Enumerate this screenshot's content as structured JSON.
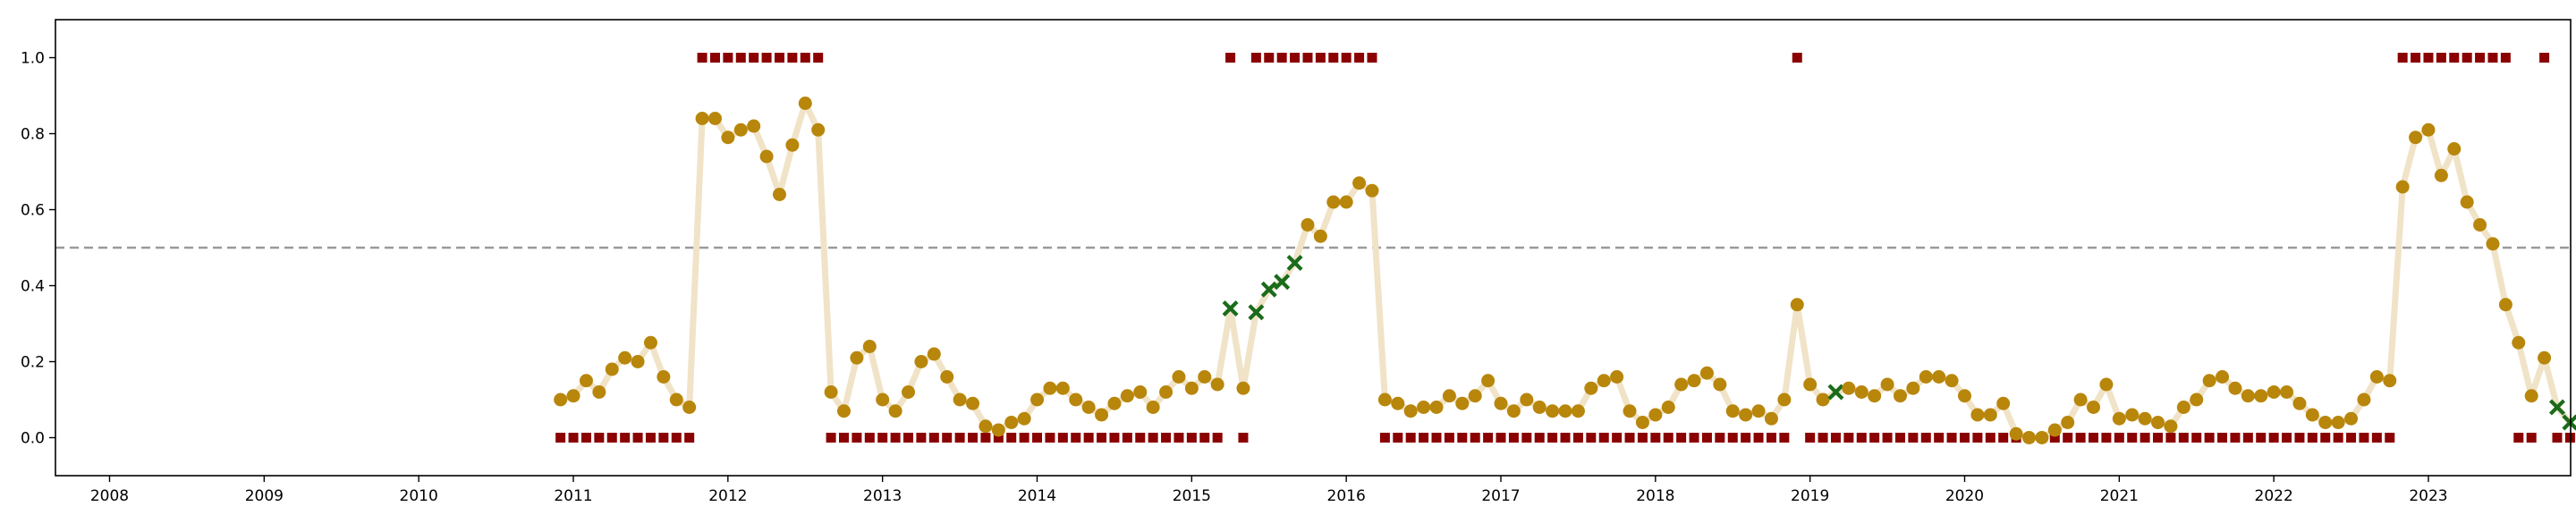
{
  "chart_data": {
    "type": "scatter",
    "title": "",
    "xlabel": "",
    "ylabel": "",
    "xlim": [
      2007.65,
      2023.92
    ],
    "ylim": [
      -0.1,
      1.1
    ],
    "grid": false,
    "legend": "none",
    "threshold": 0.5,
    "colors": {
      "line": "#f0e3c7",
      "point": "#b8860b",
      "cross": "#1a6b1a",
      "square": "#8b0000",
      "threshold": "#999999"
    },
    "x_ticks": [
      {
        "value": 2008,
        "label": "2008"
      },
      {
        "value": 2009,
        "label": "2009"
      },
      {
        "value": 2010,
        "label": "2010"
      },
      {
        "value": 2011,
        "label": "2011"
      },
      {
        "value": 2012,
        "label": "2012"
      },
      {
        "value": 2013,
        "label": "2013"
      },
      {
        "value": 2014,
        "label": "2014"
      },
      {
        "value": 2015,
        "label": "2015"
      },
      {
        "value": 2016,
        "label": "2016"
      },
      {
        "value": 2017,
        "label": "2017"
      },
      {
        "value": 2018,
        "label": "2018"
      },
      {
        "value": 2019,
        "label": "2019"
      },
      {
        "value": 2020,
        "label": "2020"
      },
      {
        "value": 2021,
        "label": "2021"
      },
      {
        "value": 2022,
        "label": "2022"
      },
      {
        "value": 2023,
        "label": "2023"
      }
    ],
    "y_ticks": [
      {
        "value": 0.0,
        "label": "0.0"
      },
      {
        "value": 0.2,
        "label": "0.2"
      },
      {
        "value": 0.4,
        "label": "0.4"
      },
      {
        "value": 0.6,
        "label": "0.6"
      },
      {
        "value": 0.8,
        "label": "0.8"
      },
      {
        "value": 1.0,
        "label": "1.0"
      }
    ],
    "series": [
      {
        "x_start": 2010.917,
        "x_step": 0.08333,
        "values": [
          0.1,
          0.11,
          0.15,
          0.12,
          0.18,
          0.21,
          0.2,
          0.25,
          0.16,
          0.1,
          0.08,
          0.84,
          0.84,
          0.79,
          0.81,
          0.82,
          0.74,
          0.64,
          0.77,
          0.88,
          0.81,
          0.12,
          0.07,
          0.21,
          0.24,
          0.1,
          0.07,
          0.12,
          0.2,
          0.22,
          0.16,
          0.1,
          0.09,
          0.03,
          0.02,
          0.04,
          0.05,
          0.1,
          0.13,
          0.13,
          0.1,
          0.08,
          0.06,
          0.09,
          0.11,
          0.12,
          0.08,
          0.12,
          0.16,
          0.13,
          0.16,
          0.14,
          0.34,
          0.13,
          0.33,
          0.39,
          0.41,
          0.46,
          0.56,
          0.53,
          0.62,
          0.62,
          0.67,
          0.65,
          0.1,
          0.09,
          0.07,
          0.08,
          0.08,
          0.11,
          0.09,
          0.11,
          0.15,
          0.09,
          0.07,
          0.1,
          0.08,
          0.07,
          0.07,
          0.07,
          0.13,
          0.15,
          0.16,
          0.07,
          0.04,
          0.06,
          0.08,
          0.14,
          0.15,
          0.17,
          0.14,
          0.07,
          0.06,
          0.07,
          0.05,
          0.1,
          0.35,
          0.14,
          0.1,
          0.12,
          0.13,
          0.12,
          0.11,
          0.14,
          0.11,
          0.13,
          0.16,
          0.16,
          0.15,
          0.11,
          0.06,
          0.06,
          0.09,
          0.01,
          0.0,
          0.0,
          0.02,
          0.04,
          0.1,
          0.08,
          0.14,
          0.05,
          0.06,
          0.05,
          0.04,
          0.03,
          0.08,
          0.1,
          0.15,
          0.16,
          0.13,
          0.11,
          0.11,
          0.12,
          0.12,
          0.09,
          0.06,
          0.04,
          0.04,
          0.05,
          0.1,
          0.16,
          0.15,
          0.66,
          0.79,
          0.81,
          0.69,
          0.76,
          0.62,
          0.56,
          0.51,
          0.35,
          0.25,
          0.11,
          0.21,
          0.08,
          0.04
        ],
        "markers": "ccccccccccccccccccccccccccccccccccccccccccccccccccccxcxxxxcccccccccccccccccccccccccccccccccccccccccxcccccccccccccccccccccccccccccccccccccccccccccccccccccccxxcxcc",
        "flags": [
          0,
          0,
          0,
          0,
          0,
          0,
          0,
          0,
          0,
          0,
          0,
          1,
          1,
          1,
          1,
          1,
          1,
          1,
          1,
          1,
          1,
          0,
          0,
          0,
          0,
          0,
          0,
          0,
          0,
          0,
          0,
          0,
          0,
          0,
          0,
          0,
          0,
          0,
          0,
          0,
          0,
          0,
          0,
          0,
          0,
          0,
          0,
          0,
          0,
          0,
          0,
          0,
          1,
          0,
          1,
          1,
          1,
          1,
          1,
          1,
          1,
          1,
          1,
          1,
          0,
          0,
          0,
          0,
          0,
          0,
          0,
          0,
          0,
          0,
          0,
          0,
          0,
          0,
          0,
          0,
          0,
          0,
          0,
          0,
          0,
          0,
          0,
          0,
          0,
          0,
          0,
          0,
          0,
          0,
          0,
          0,
          1,
          0,
          0,
          0,
          0,
          0,
          0,
          0,
          0,
          0,
          0,
          0,
          0,
          0,
          0,
          0,
          0,
          0,
          0,
          0,
          0,
          0,
          0,
          0,
          0,
          0,
          0,
          0,
          0,
          0,
          0,
          0,
          0,
          0,
          0,
          0,
          0,
          0,
          0,
          0,
          0,
          0,
          0,
          0,
          0,
          0,
          0,
          1,
          1,
          1,
          1,
          1,
          1,
          1,
          1,
          1,
          0,
          0,
          1,
          0,
          0
        ]
      }
    ]
  }
}
